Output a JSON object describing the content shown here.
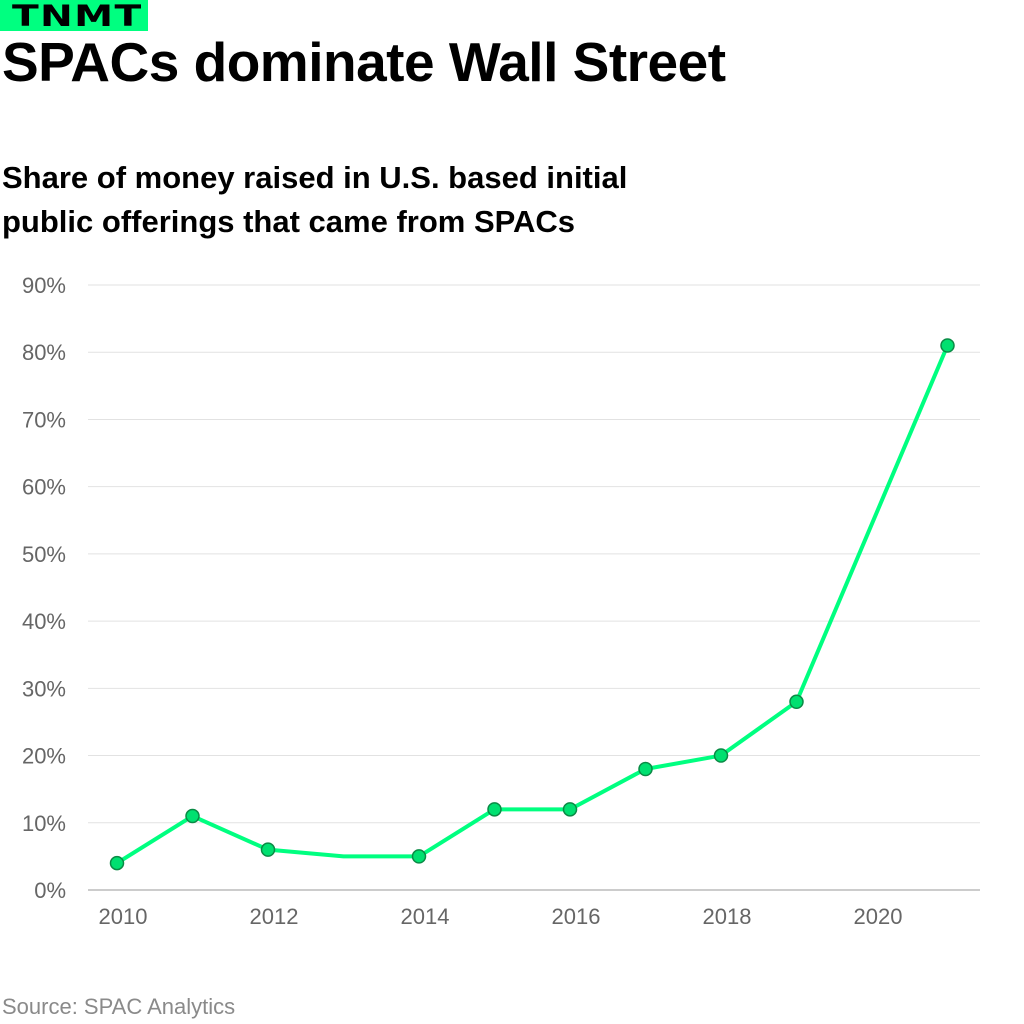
{
  "brand": {
    "logo_text": "TNMT",
    "accent": "#00ff80"
  },
  "title": "SPACs dominate Wall Street",
  "subtitle": "Share of money raised in U.S. based initial public offerings that came from SPACs",
  "source": "Source: SPAC Analytics",
  "chart_data": {
    "type": "line",
    "title": "Share of money raised in U.S. based initial public offerings that came from SPACs",
    "xlabel": "",
    "ylabel": "",
    "xlim": [
      2010,
      2021
    ],
    "ylim": [
      0,
      90
    ],
    "grid": true,
    "line_color": "#00ff80",
    "marker_color": "#00e070",
    "x_ticks": [
      2010,
      2012,
      2014,
      2016,
      2018,
      2020
    ],
    "x_tick_labels": [
      "2010",
      "2012",
      "2014",
      "2016",
      "2018",
      "2020"
    ],
    "y_ticks": [
      0,
      10,
      20,
      30,
      40,
      50,
      60,
      70,
      80,
      90
    ],
    "y_tick_labels": [
      "0%",
      "10%",
      "20%",
      "30%",
      "40%",
      "50%",
      "60%",
      "70%",
      "80%",
      "90%"
    ],
    "points": [
      {
        "x": 2010,
        "y": 4,
        "marker": true
      },
      {
        "x": 2011,
        "y": 11,
        "marker": true
      },
      {
        "x": 2012,
        "y": 6,
        "marker": true
      },
      {
        "x": 2013,
        "y": 5,
        "marker": false
      },
      {
        "x": 2014,
        "y": 5,
        "marker": true
      },
      {
        "x": 2015,
        "y": 12,
        "marker": true
      },
      {
        "x": 2016,
        "y": 12,
        "marker": true
      },
      {
        "x": 2017,
        "y": 18,
        "marker": true
      },
      {
        "x": 2018,
        "y": 20,
        "marker": true
      },
      {
        "x": 2019,
        "y": 28,
        "marker": true
      },
      {
        "x": 2021,
        "y": 81,
        "marker": true
      }
    ]
  }
}
